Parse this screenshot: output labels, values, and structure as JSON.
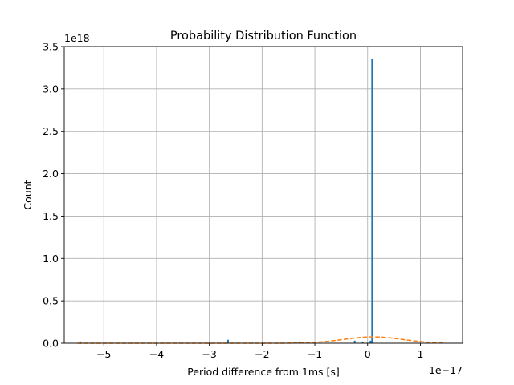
{
  "chart_data": {
    "type": "bar",
    "title": "Probability Distribution Function",
    "xlabel": "Period difference from 1ms [s]",
    "ylabel": "Count",
    "x_offset_label": "1e−17",
    "y_offset_label": "1e18",
    "grid": true,
    "xlim": [
      -5.75,
      1.8
    ],
    "ylim": [
      0,
      3.5
    ],
    "x_ticks": [
      {
        "value": -5,
        "label": "−5"
      },
      {
        "value": -4,
        "label": "−4"
      },
      {
        "value": -3,
        "label": "−3"
      },
      {
        "value": -2,
        "label": "−2"
      },
      {
        "value": -1,
        "label": "−1"
      },
      {
        "value": 0,
        "label": "0"
      },
      {
        "value": 1,
        "label": "1"
      }
    ],
    "y_ticks": [
      {
        "value": 0.0,
        "label": "0.0"
      },
      {
        "value": 0.5,
        "label": "0.5"
      },
      {
        "value": 1.0,
        "label": "1.0"
      },
      {
        "value": 1.5,
        "label": "1.5"
      },
      {
        "value": 2.0,
        "label": "2.0"
      },
      {
        "value": 2.5,
        "label": "2.5"
      },
      {
        "value": 3.0,
        "label": "3.0"
      },
      {
        "value": 3.5,
        "label": "3.5"
      }
    ],
    "histogram": {
      "color": "#1f77b4",
      "bar_width": 0.02,
      "x": [
        -5.45,
        -2.65,
        -1.3,
        -0.25,
        -0.1,
        0.05,
        0.08
      ],
      "values": [
        0.02,
        0.04,
        0.02,
        0.03,
        0.02,
        0.03,
        3.35
      ]
    },
    "fit_curve": {
      "color": "#ff7f0e",
      "style": "dashed",
      "mu": 0.1,
      "sigma": 0.55,
      "peak": 0.075,
      "x_range": [
        -5.5,
        1.45
      ]
    }
  }
}
